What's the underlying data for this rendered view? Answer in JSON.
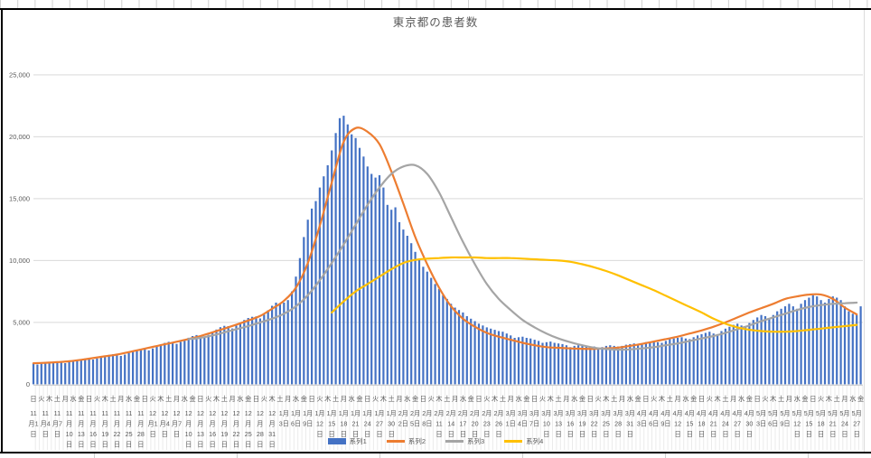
{
  "chart_data": {
    "type": "combo-bar-line",
    "title": "東京都の患者数",
    "n_days": 209,
    "y_axis": {
      "min": 0,
      "max": 25000,
      "step": 5000,
      "tick_labels": [
        "0",
        "5,000",
        "10,000",
        "15,000",
        "20,000",
        "25,000"
      ]
    },
    "x_axis": {
      "first_date": "11月1日",
      "last_date_tick": "5月27日",
      "weekday_tick_interval_days": 2,
      "date_tick_interval_days": 3,
      "weekday_ticks": [
        "日",
        "火",
        "木",
        "土",
        "月",
        "水",
        "金",
        "日",
        "火",
        "木",
        "土",
        "月",
        "水",
        "金",
        "日",
        "火",
        "木",
        "土",
        "月",
        "水",
        "金",
        "日",
        "火",
        "木",
        "土",
        "月",
        "水",
        "金",
        "日",
        "火",
        "木",
        "土",
        "月",
        "水",
        "金",
        "日",
        "火",
        "木",
        "土",
        "月",
        "水",
        "金",
        "日",
        "火",
        "木",
        "土",
        "月",
        "水",
        "金",
        "日",
        "火",
        "木",
        "土",
        "月",
        "水",
        "金",
        "日",
        "火",
        "木",
        "土",
        "月",
        "水",
        "金",
        "日",
        "火",
        "木",
        "土",
        "月",
        "水",
        "金",
        "日",
        "火",
        "木",
        "土",
        "月",
        "水",
        "金",
        "日",
        "火",
        "木",
        "土",
        "月",
        "水",
        "金",
        "日",
        "火",
        "木",
        "土",
        "月",
        "水",
        "金",
        "日",
        "火",
        "木",
        "土",
        "月",
        "水",
        "金",
        "日",
        "火",
        "木",
        "土",
        "月",
        "水",
        "金"
      ],
      "date_ticks": [
        "11月1日",
        "11月4日",
        "11月7日",
        "11月10日",
        "11月13日",
        "11月16日",
        "11月19日",
        "11月22日",
        "11月25日",
        "11月28日",
        "12月1日",
        "12月4日",
        "12月7日",
        "12月10日",
        "12月13日",
        "12月16日",
        "12月19日",
        "12月22日",
        "12月25日",
        "12月28日",
        "12月31日",
        "1月3日",
        "1月6日",
        "1月9日",
        "1月12日",
        "1月15日",
        "1月18日",
        "1月21日",
        "1月24日",
        "1月27日",
        "1月30日",
        "2月2日",
        "2月5日",
        "2月8日",
        "2月11日",
        "2月14日",
        "2月17日",
        "2月20日",
        "2月23日",
        "2月26日",
        "3月1日",
        "3月4日",
        "3月7日",
        "3月10日",
        "3月13日",
        "3月16日",
        "3月19日",
        "3月22日",
        "3月25日",
        "3月28日",
        "3月31日",
        "4月3日",
        "4月6日",
        "4月9日",
        "4月12日",
        "4月15日",
        "4月18日",
        "4月21日",
        "4月24日",
        "4月27日",
        "4月30日",
        "5月3日",
        "5月6日",
        "5月9日",
        "5月12日",
        "5月15日",
        "5月18日",
        "5月21日",
        "5月24日",
        "5月27日"
      ]
    },
    "series": [
      {
        "name": "系列1",
        "type": "bar",
        "color": "#4472C4",
        "start_day": 0,
        "step_days": 1,
        "values": [
          1700,
          1600,
          1660,
          1730,
          1790,
          1820,
          1820,
          1810,
          1710,
          1790,
          1880,
          1960,
          2030,
          2080,
          2110,
          2000,
          2090,
          2200,
          2300,
          2380,
          2420,
          2410,
          2290,
          2400,
          2540,
          2670,
          2790,
          2870,
          2870,
          2740,
          2890,
          3050,
          3210,
          3340,
          3430,
          3410,
          3260,
          3420,
          3590,
          3760,
          3900,
          3980,
          3950,
          3790,
          3990,
          4200,
          4420,
          4610,
          4720,
          4700,
          4510,
          4740,
          4980,
          5200,
          5360,
          5450,
          5480,
          5320,
          5630,
          5980,
          6340,
          6600,
          6520,
          6600,
          6800,
          7500,
          8700,
          10200,
          11900,
          13300,
          14200,
          14800,
          15900,
          16800,
          17700,
          18900,
          20300,
          21500,
          21700,
          21000,
          20200,
          19900,
          19100,
          18400,
          17600,
          17000,
          16700,
          16900,
          15900,
          14500,
          14100,
          14300,
          13100,
          12500,
          12000,
          11400,
          10700,
          10100,
          9500,
          9100,
          8600,
          8100,
          7700,
          7200,
          6900,
          6500,
          6200,
          6000,
          5800,
          5500,
          5300,
          5100,
          4900,
          4750,
          4600,
          4500,
          4400,
          4300,
          4250,
          4100,
          3950,
          3750,
          3800,
          3850,
          3750,
          3700,
          3600,
          3500,
          3350,
          3400,
          3450,
          3350,
          3300,
          3250,
          3150,
          3000,
          3100,
          3150,
          3100,
          3050,
          3000,
          3050,
          2950,
          3000,
          3100,
          3150,
          3100,
          3050,
          3100,
          3200,
          3250,
          3300,
          3200,
          3300,
          3400,
          3450,
          3500,
          3400,
          3350,
          3500,
          3650,
          3700,
          3750,
          3800,
          3700,
          3650,
          3800,
          3950,
          4050,
          4150,
          4250,
          4100,
          4050,
          4300,
          4500,
          4650,
          4800,
          4900,
          4750,
          4700,
          4950,
          5200,
          5400,
          5600,
          5500,
          5300,
          5600,
          5900,
          6100,
          6300,
          6500,
          6300,
          6100,
          6500,
          6800,
          7000,
          7200,
          7100,
          6800,
          6600,
          6900,
          7100,
          7000,
          6800,
          6300,
          5900,
          5700,
          5600,
          6300
        ]
      },
      {
        "name": "系列2",
        "type": "line",
        "color": "#ED7D31",
        "start_day": 0,
        "step_days": 3,
        "values": [
          1700,
          1740,
          1790,
          1860,
          1980,
          2120,
          2260,
          2400,
          2600,
          2810,
          3020,
          3230,
          3440,
          3660,
          3900,
          4200,
          4500,
          4820,
          5150,
          5520,
          6100,
          6750,
          7800,
          9800,
          12800,
          16300,
          19600,
          20700,
          20400,
          19400,
          17200,
          14600,
          11900,
          9700,
          7800,
          6300,
          5300,
          4650,
          4150,
          3850,
          3600,
          3350,
          3150,
          3000,
          2950,
          2900,
          2870,
          2860,
          2900,
          2960,
          3100,
          3260,
          3450,
          3650,
          3850,
          4100,
          4350,
          4650,
          5000,
          5400,
          5800,
          6150,
          6500,
          6900,
          7100,
          7250,
          7250,
          6900,
          6200,
          5650
        ]
      },
      {
        "name": "系列3",
        "type": "line",
        "color": "#A5A5A5",
        "start_day": 39,
        "step_days": 3,
        "values": [
          3650,
          3750,
          3950,
          4200,
          4450,
          4700,
          5000,
          5300,
          5700,
          6300,
          7200,
          8400,
          9800,
          11300,
          12900,
          14500,
          15900,
          17000,
          17600,
          17700,
          17000,
          15500,
          13500,
          11500,
          9700,
          8100,
          6900,
          6000,
          5200,
          4600,
          4100,
          3700,
          3400,
          3150,
          2950,
          2850,
          2800,
          2820,
          2900,
          3000,
          3150,
          3300,
          3500,
          3700,
          3900,
          4150,
          4450,
          4750,
          5100,
          5400,
          5700,
          6000,
          6250,
          6400,
          6500,
          6550,
          6600
        ]
      },
      {
        "name": "系列4",
        "type": "line",
        "color": "#FFC000",
        "start_day": 75,
        "step_days": 3,
        "values": [
          5800,
          6700,
          7500,
          8100,
          8700,
          9300,
          9800,
          10050,
          10150,
          10200,
          10250,
          10250,
          10250,
          10200,
          10200,
          10200,
          10150,
          10100,
          10050,
          10000,
          9900,
          9700,
          9450,
          9150,
          8800,
          8400,
          8000,
          7600,
          7150,
          6700,
          6250,
          5800,
          5300,
          4900,
          4600,
          4400,
          4300,
          4250,
          4250,
          4300,
          4400,
          4500,
          4600,
          4700,
          4800
        ]
      }
    ],
    "legend": {
      "position": "bottom",
      "labels": [
        "系列1",
        "系列2",
        "系列3",
        "系列4"
      ]
    }
  }
}
